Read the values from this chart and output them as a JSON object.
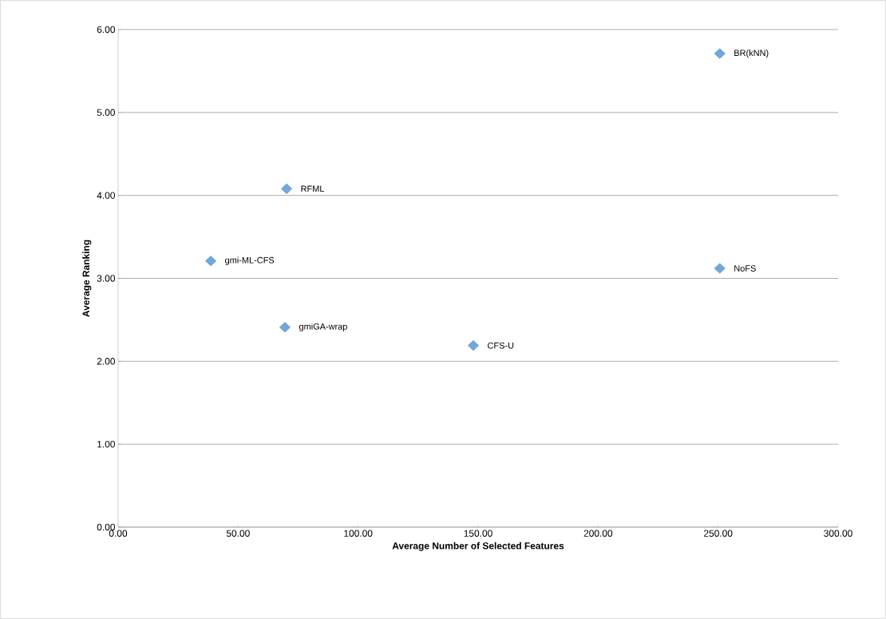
{
  "chart_data": {
    "type": "scatter",
    "xlabel": "Average Number of Selected Features",
    "ylabel": "Average Ranking",
    "x": [
      250.7,
      70.2,
      38.6,
      69.5,
      148.0,
      250.7
    ],
    "values": [
      5.71,
      4.08,
      3.21,
      2.41,
      2.19,
      3.12
    ],
    "color": "#6fa8dc",
    "marker": "diamond",
    "grid": "y",
    "xlim": [
      0,
      300
    ],
    "ylim": [
      0,
      6
    ],
    "xticks": [
      {
        "value": 0,
        "label": "0.00"
      },
      {
        "value": 50,
        "label": "50.00"
      },
      {
        "value": 100,
        "label": "100.00"
      },
      {
        "value": 150,
        "label": "150.00"
      },
      {
        "value": 200,
        "label": "200.00"
      },
      {
        "value": 250,
        "label": "250.00"
      },
      {
        "value": 300,
        "label": "300.00"
      }
    ],
    "yticks": [
      {
        "value": 0,
        "label": "0.00"
      },
      {
        "value": 1,
        "label": "1.00"
      },
      {
        "value": 2,
        "label": "2.00"
      },
      {
        "value": 3,
        "label": "3.00"
      },
      {
        "value": 4,
        "label": "4.00"
      },
      {
        "value": 5,
        "label": "5.00"
      },
      {
        "value": 6,
        "label": "6.00"
      }
    ],
    "annotations": [
      {
        "text": "BR(kNN)",
        "x": 250.7,
        "y": 5.71
      },
      {
        "text": "RFML",
        "x": 70.2,
        "y": 4.08
      },
      {
        "text": "gmi-ML-CFS",
        "x": 38.6,
        "y": 3.21
      },
      {
        "text": "gmiGA-wrap",
        "x": 69.5,
        "y": 2.41
      },
      {
        "text": "CFS-U",
        "x": 148.0,
        "y": 2.19
      },
      {
        "text": "NoFS",
        "x": 250.7,
        "y": 3.12
      }
    ]
  }
}
